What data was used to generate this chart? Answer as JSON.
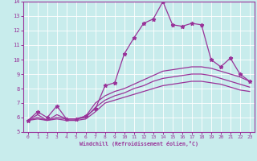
{
  "xlabel": "Windchill (Refroidissement éolien,°C)",
  "bg_color": "#c8ecec",
  "line_color": "#993399",
  "xlim": [
    -0.5,
    23.5
  ],
  "ylim": [
    5,
    14
  ],
  "x_ticks": [
    0,
    1,
    2,
    3,
    4,
    5,
    6,
    7,
    8,
    9,
    10,
    11,
    12,
    13,
    14,
    15,
    16,
    17,
    18,
    19,
    20,
    21,
    22,
    23
  ],
  "y_ticks": [
    5,
    6,
    7,
    8,
    9,
    10,
    11,
    12,
    13,
    14
  ],
  "series1_x": [
    0,
    1,
    2,
    3,
    4,
    5,
    6,
    7,
    8,
    9,
    10,
    11,
    12,
    13,
    14,
    15,
    16,
    17,
    18,
    19,
    20,
    21,
    22,
    23
  ],
  "series1_y": [
    5.8,
    6.4,
    6.0,
    6.8,
    5.9,
    5.9,
    6.1,
    6.6,
    8.2,
    8.4,
    10.4,
    11.5,
    12.5,
    12.8,
    14.0,
    12.4,
    12.3,
    12.5,
    12.4,
    10.0,
    9.5,
    10.1,
    9.0,
    8.5
  ],
  "series2_x": [
    0,
    1,
    2,
    3,
    4,
    5,
    6,
    7,
    8,
    9,
    10,
    11,
    12,
    13,
    14,
    15,
    16,
    17,
    18,
    19,
    20,
    21,
    22,
    23
  ],
  "series2_y": [
    5.8,
    6.2,
    5.8,
    6.2,
    5.9,
    5.9,
    6.1,
    7.0,
    7.5,
    7.8,
    8.0,
    8.3,
    8.6,
    8.9,
    9.2,
    9.3,
    9.4,
    9.5,
    9.5,
    9.4,
    9.2,
    9.0,
    8.8,
    8.5
  ],
  "series3_x": [
    0,
    1,
    2,
    3,
    4,
    5,
    6,
    7,
    8,
    9,
    10,
    11,
    12,
    13,
    14,
    15,
    16,
    17,
    18,
    19,
    20,
    21,
    22,
    23
  ],
  "series3_y": [
    5.8,
    6.0,
    5.8,
    6.0,
    5.9,
    5.9,
    6.0,
    6.7,
    7.2,
    7.5,
    7.7,
    8.0,
    8.2,
    8.5,
    8.7,
    8.8,
    8.9,
    9.0,
    9.0,
    8.9,
    8.7,
    8.5,
    8.3,
    8.1
  ],
  "series4_x": [
    0,
    1,
    2,
    3,
    4,
    5,
    6,
    7,
    8,
    9,
    10,
    11,
    12,
    13,
    14,
    15,
    16,
    17,
    18,
    19,
    20,
    21,
    22,
    23
  ],
  "series4_y": [
    5.8,
    5.9,
    5.8,
    5.9,
    5.8,
    5.8,
    5.9,
    6.4,
    7.0,
    7.2,
    7.4,
    7.6,
    7.8,
    8.0,
    8.2,
    8.3,
    8.4,
    8.5,
    8.5,
    8.4,
    8.3,
    8.1,
    7.9,
    7.8
  ]
}
